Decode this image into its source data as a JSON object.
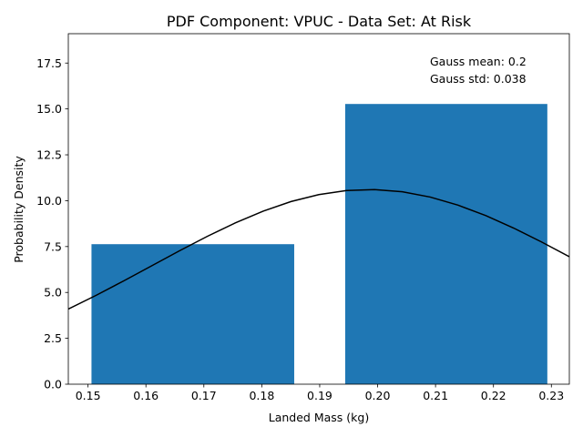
{
  "chart_data": {
    "type": "bar",
    "title": "PDF Component: VPUC - Data Set: At Risk",
    "xlabel": "Landed Mass (kg)",
    "ylabel": "Probability Density",
    "xlim": [
      0.1466,
      0.2331
    ],
    "ylim": [
      0,
      19.1
    ],
    "grid": false,
    "xticks": [
      "0.15",
      "0.16",
      "0.17",
      "0.18",
      "0.19",
      "0.20",
      "0.21",
      "0.22",
      "0.23"
    ],
    "xtick_values": [
      0.15,
      0.16,
      0.17,
      0.18,
      0.19,
      0.2,
      0.21,
      0.22,
      0.23
    ],
    "yticks": [
      "0.0",
      "2.5",
      "5.0",
      "7.5",
      "10.0",
      "12.5",
      "15.0",
      "17.5"
    ],
    "ytick_values": [
      0,
      2.5,
      5.0,
      7.5,
      10.0,
      12.5,
      15.0,
      17.5
    ],
    "bars": [
      {
        "x0": 0.1506,
        "x1": 0.1856,
        "value": 7.63
      },
      {
        "x0": 0.1944,
        "x1": 0.2293,
        "value": 15.27
      }
    ],
    "curve": {
      "mean": 0.1985,
      "std": 0.0376,
      "color": "#000000"
    },
    "bar_color": "#1f77b4",
    "annotations": [
      "Gauss mean: 0.2",
      "Gauss std: 0.038"
    ],
    "annotation_position": "top-right"
  }
}
